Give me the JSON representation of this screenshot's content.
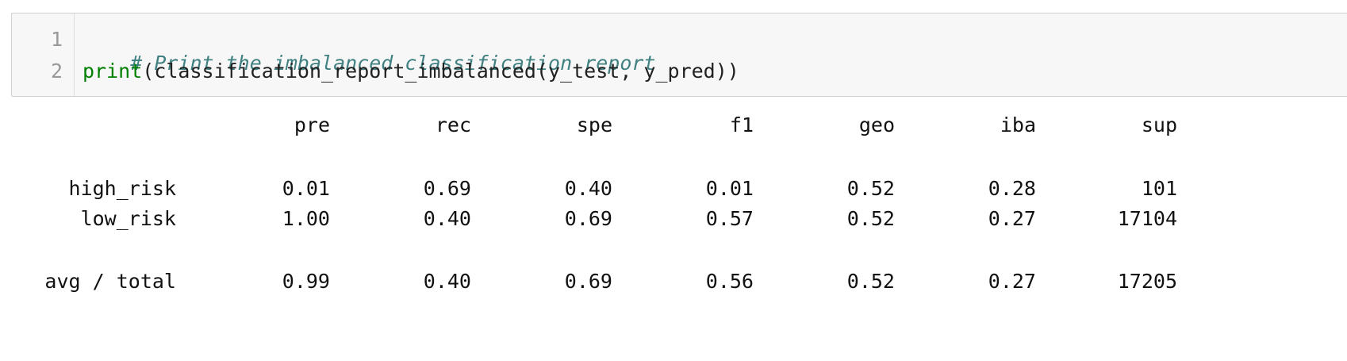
{
  "code": {
    "line_numbers": [
      "1",
      "2"
    ],
    "comment": "# Print the imbalanced classification report",
    "builtin": "print",
    "call_rest": "(classification_report_imbalanced(y_test, y_pred))"
  },
  "report": {
    "headers": [
      "pre",
      "rec",
      "spe",
      "f1",
      "geo",
      "iba",
      "sup"
    ],
    "rows": [
      {
        "label": "high_risk",
        "values": [
          "0.01",
          "0.69",
          "0.40",
          "0.01",
          "0.52",
          "0.28",
          "101"
        ]
      },
      {
        "label": "low_risk",
        "values": [
          "1.00",
          "0.40",
          "0.69",
          "0.57",
          "0.52",
          "0.27",
          "17104"
        ]
      },
      {
        "label": "avg / total",
        "values": [
          "0.99",
          "0.40",
          "0.69",
          "0.56",
          "0.52",
          "0.27",
          "17205"
        ]
      }
    ]
  }
}
